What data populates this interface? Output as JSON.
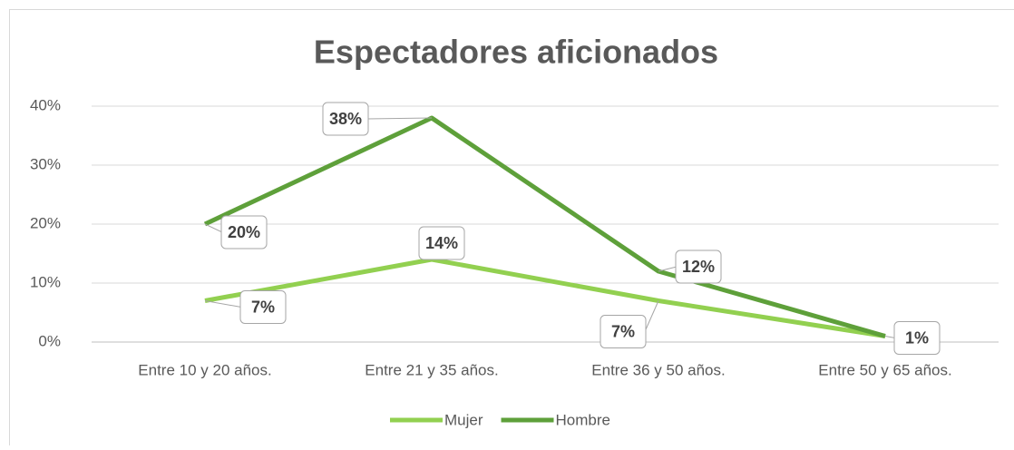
{
  "chart_data": {
    "type": "line",
    "title": "Espectadores aficionados",
    "categories": [
      "Entre 10 y 20 años.",
      "Entre 21 y 35 años.",
      "Entre 36 y 50 años.",
      "Entre 50 y 65 años."
    ],
    "series": [
      {
        "name": "Mujer",
        "color": "#92d050",
        "values": [
          7,
          14,
          7,
          1
        ],
        "value_labels": [
          "7%",
          "14%",
          "7%",
          null
        ]
      },
      {
        "name": "Hombre",
        "color": "#5ea03a",
        "values": [
          20,
          38,
          12,
          1
        ],
        "value_labels": [
          "20%",
          "38%",
          "12%",
          "1%"
        ]
      }
    ],
    "ylim": [
      0,
      40
    ],
    "yticks": [
      {
        "value": 0,
        "label": "0%"
      },
      {
        "value": 10,
        "label": "10%"
      },
      {
        "value": 20,
        "label": "20%"
      },
      {
        "value": 30,
        "label": "30%"
      },
      {
        "value": 40,
        "label": "40%"
      }
    ],
    "grid": true,
    "legend": "bottom"
  }
}
